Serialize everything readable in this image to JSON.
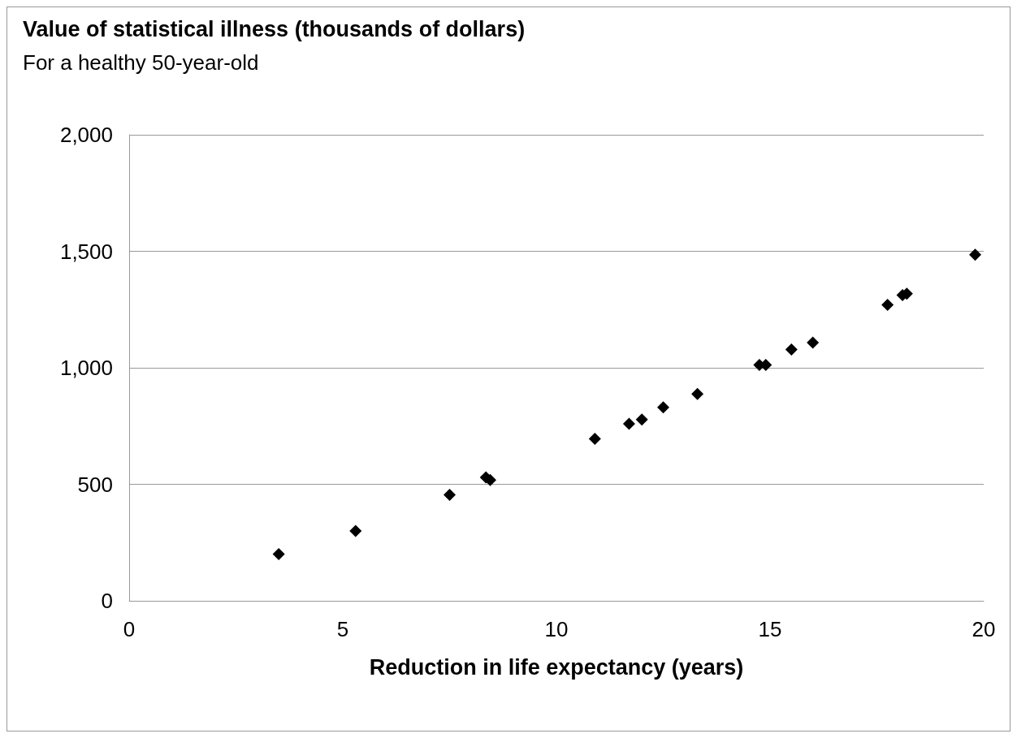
{
  "chart_data": {
    "type": "scatter",
    "title": "Value of statistical illness (thousands of dollars)",
    "subtitle": "For a healthy 50-year-old",
    "xlabel": "Reduction in life expectancy (years)",
    "x": [
      3.5,
      5.3,
      7.5,
      8.35,
      8.45,
      10.9,
      11.7,
      12.0,
      12.5,
      13.3,
      14.75,
      14.9,
      15.5,
      16.0,
      17.75,
      18.1,
      18.2,
      19.8
    ],
    "values": [
      200,
      300,
      455,
      530,
      518,
      695,
      760,
      778,
      830,
      888,
      1012,
      1012,
      1078,
      1108,
      1270,
      1312,
      1318,
      1485
    ],
    "color": "#000000",
    "marker": "diamond",
    "xlim": [
      0,
      20
    ],
    "xticks": [
      0,
      5,
      10,
      15,
      20
    ],
    "ylim": [
      0,
      2000
    ],
    "yticks": [
      {
        "value": 0,
        "label": "0"
      },
      {
        "value": 500,
        "label": "500"
      },
      {
        "value": 1000,
        "label": "1,000"
      },
      {
        "value": 1500,
        "label": "1,500"
      },
      {
        "value": 2000,
        "label": "2,000"
      }
    ],
    "grid": "y"
  }
}
